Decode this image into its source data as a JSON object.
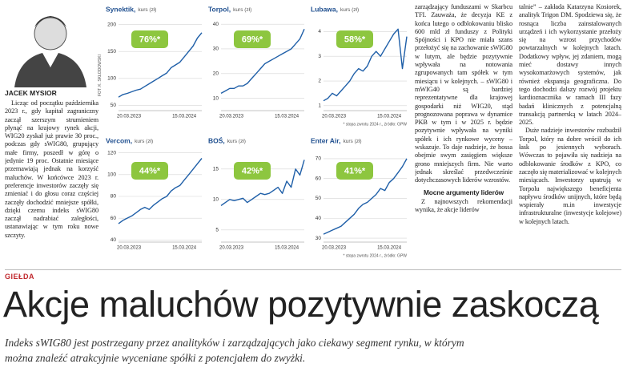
{
  "photo_credit": "FOT. K. SKŁODOWSKI",
  "author": "JACEK MYSIOR",
  "columns": [
    {
      "paragraphs": [
        "Licząc od początku października 2023 r., gdy kapitał zagraniczny zaczął szerszym strumieniem płynąć na krajowy rynek akcji, WIG20 zyskał już prawie 30 proc., podczas gdy sWIG80, grupujący małe firmy, poszedł w górę o jedynie 19 proc. Ostatnie miesiące przemawiają jednak na korzyść maluchów. W końcówce 2023 r. preferencje inwestorów zaczęły się zmieniać i do głosu coraz częściej zaczęły dochodzić mniejsze spółki, dzięki czemu indeks sWIG80 zaczął nadrabiać zaległości, ustanawiając w tym roku nowe szczyty."
      ]
    },
    {
      "paragraphs": [
        "zarządzający funduszami w Skarbcu TFI. Zauważa, że decyzja KE z końca lutego o odblokowaniu blisko 600 mld zł funduszy z Polityki Spójności i KPO nie miała szans przełożyć się na zachowanie sWIG80 w lutym, ale będzie pozytywnie wpływała na notowania zgrupowanych tam spółek w tym miesiącu i w kolejnych. – sWIG80 i mWIG40 są bardziej reprezentatywne dla krajowej gospodarki niż WIG20, stąd prognozowana poprawa w dynamice PKB w tym i w 2025 r. będzie pozytywnie wpływała na wyniki spółek i ich rynkowe wyceny – wskazuje. To daje nadzieje, że hossa obejmie swym zasięgiem większe grono mniejszych firm. Nie warto jednak skreślać przedwcześnie dotychczasowych liderów wzrostów."
      ],
      "subhead": "Mocne argumenty liderów",
      "after": [
        "Z najnowszych rekomendacji wynika, że akcje liderów"
      ]
    },
    {
      "paragraphs": [
        "talnie” – zakłada Katarzyna Kosiorek, analityk Trigon DM. Spodziewa się, że rosnąca liczba zainstalowanych urządzeń i ich wykorzystanie przełoży się na wzrost przychodów powtarzalnych w kolejnych latach. Dodatkowy wpływ, jej zdaniem, mogą mieć dostawy innych wysokomarżowych systemów, jak również ekspansja geograficzna. Do tego dochodzi dalszy rozwój projektu kardioznacznika w ramach III fazy badań klinicznych z potencjalną transakcją partnerską w latach 2024–2025.",
        "Duże nadzieje inwestorów rozbudził Torpol, który na dobre wrócił do ich łask po jesiennych wyborach. Wówczas to pojawiła się nadzieja na odblokowanie środków z KPO, co zaczęło się materializować w kolejnych miesiącach. Inwestorzy upatrują w Torpolu największego beneficjenta napływu środków unijnych, które będą wspierały m.in inwestycje infrastrukturalne (inwestycje kolejowe) w kolejnych latach."
      ]
    }
  ],
  "chart_data": [
    {
      "type": "line",
      "title": "Synektik,",
      "unit": "kurs (zł)",
      "badge": "76%*",
      "badge_color": "#8dc63f",
      "color": "#1f5fa8",
      "grid": true,
      "categories": [
        "20.03.2023",
        null,
        null,
        null,
        null,
        null,
        null,
        null,
        null,
        null,
        null,
        null,
        null,
        null,
        null,
        "15.03.2024",
        null,
        null,
        null,
        null
      ],
      "values": [
        65,
        70,
        72,
        75,
        78,
        80,
        85,
        90,
        95,
        100,
        105,
        110,
        120,
        125,
        130,
        140,
        150,
        160,
        175,
        185
      ],
      "ylim": [
        40,
        210
      ],
      "yticks": [
        50,
        100,
        150,
        200
      ]
    },
    {
      "type": "line",
      "title": "Torpol,",
      "unit": "kurs (zł)",
      "badge": "69%*",
      "badge_color": "#8dc63f",
      "color": "#1f5fa8",
      "grid": true,
      "categories": [
        "20.03.2023",
        null,
        null,
        null,
        null,
        null,
        null,
        null,
        null,
        null,
        null,
        null,
        null,
        null,
        null,
        "15.03.2024",
        null,
        null,
        null,
        null
      ],
      "values": [
        12,
        13,
        14,
        14,
        15,
        15,
        16,
        18,
        20,
        22,
        24,
        25,
        26,
        27,
        28,
        29,
        30,
        32,
        34,
        38
      ],
      "ylim": [
        5,
        42
      ],
      "yticks": [
        10,
        20,
        30,
        40
      ]
    },
    {
      "type": "line",
      "title": "Lubawa,",
      "unit": "kurs (zł)",
      "badge": "58%*",
      "badge_color": "#8dc63f",
      "color": "#1f5fa8",
      "grid": true,
      "categories": [
        "20.03.2023",
        null,
        null,
        null,
        null,
        null,
        null,
        null,
        null,
        null,
        null,
        null,
        null,
        null,
        null,
        "15.03.2024",
        null,
        null,
        null,
        null
      ],
      "values": [
        1.2,
        1.3,
        1.5,
        1.4,
        1.6,
        1.8,
        2.0,
        2.3,
        2.5,
        2.4,
        2.6,
        3.0,
        3.2,
        3.0,
        3.3,
        3.6,
        3.9,
        4.1,
        2.5,
        3.8
      ],
      "ylim": [
        0.8,
        4.5
      ],
      "yticks": [
        1,
        2,
        3,
        4
      ],
      "note": "* stopa zwrotu 2024 r., źródło: GPW"
    },
    {
      "type": "line",
      "title": "Vercom,",
      "unit": "kurs (zł)",
      "badge": "44%*",
      "badge_color": "#8dc63f",
      "color": "#1f5fa8",
      "grid": true,
      "categories": [
        "20.03.2023",
        null,
        null,
        null,
        null,
        null,
        null,
        null,
        null,
        null,
        null,
        null,
        null,
        null,
        null,
        "15.03.2024",
        null,
        null,
        null,
        null
      ],
      "values": [
        55,
        58,
        60,
        62,
        65,
        68,
        70,
        68,
        72,
        75,
        78,
        80,
        85,
        88,
        90,
        95,
        100,
        105,
        110,
        115
      ],
      "ylim": [
        38,
        122
      ],
      "yticks": [
        40,
        60,
        80,
        100,
        120
      ]
    },
    {
      "type": "line",
      "title": "BOŚ,",
      "unit": "kurs (zł)",
      "badge": "42%*",
      "badge_color": "#8dc63f",
      "color": "#1f5fa8",
      "grid": true,
      "categories": [
        "20.03.2023",
        null,
        null,
        null,
        null,
        null,
        null,
        null,
        null,
        null,
        null,
        null,
        null,
        null,
        null,
        "15.03.2024",
        null,
        null,
        null,
        null
      ],
      "values": [
        9,
        9.5,
        10,
        9.8,
        10,
        10.2,
        9.5,
        10,
        10.5,
        11,
        10.8,
        11,
        11.5,
        12,
        11,
        13,
        12,
        15,
        14,
        16.5
      ],
      "ylim": [
        3,
        18
      ],
      "yticks": [
        5,
        10,
        15
      ]
    },
    {
      "type": "line",
      "title": "Enter Air,",
      "unit": "kurs (zł)",
      "badge": "41%*",
      "badge_color": "#8dc63f",
      "color": "#1f5fa8",
      "grid": true,
      "categories": [
        "20.03.2023",
        null,
        null,
        null,
        null,
        null,
        null,
        null,
        null,
        null,
        null,
        null,
        null,
        null,
        null,
        "15.03.2024",
        null,
        null,
        null,
        null
      ],
      "values": [
        32,
        33,
        34,
        35,
        36,
        38,
        40,
        42,
        45,
        47,
        48,
        50,
        52,
        55,
        54,
        58,
        60,
        63,
        66,
        70
      ],
      "ylim": [
        28,
        74
      ],
      "yticks": [
        30,
        40,
        50,
        60,
        70
      ],
      "note": "* stopa zwrotu 2024 r., źródło: GPW"
    }
  ],
  "section": "GIEŁDA",
  "headline": "Akcje maluchów pozytywnie zaskoczą",
  "lead": "Indeks sWIG80 jest postrzegany przez analityków i zarządzających jako ciekawy segment rynku, w którym można znaleźć atrakcyjnie wyceniane spółki z potencjałem do zwyżki."
}
